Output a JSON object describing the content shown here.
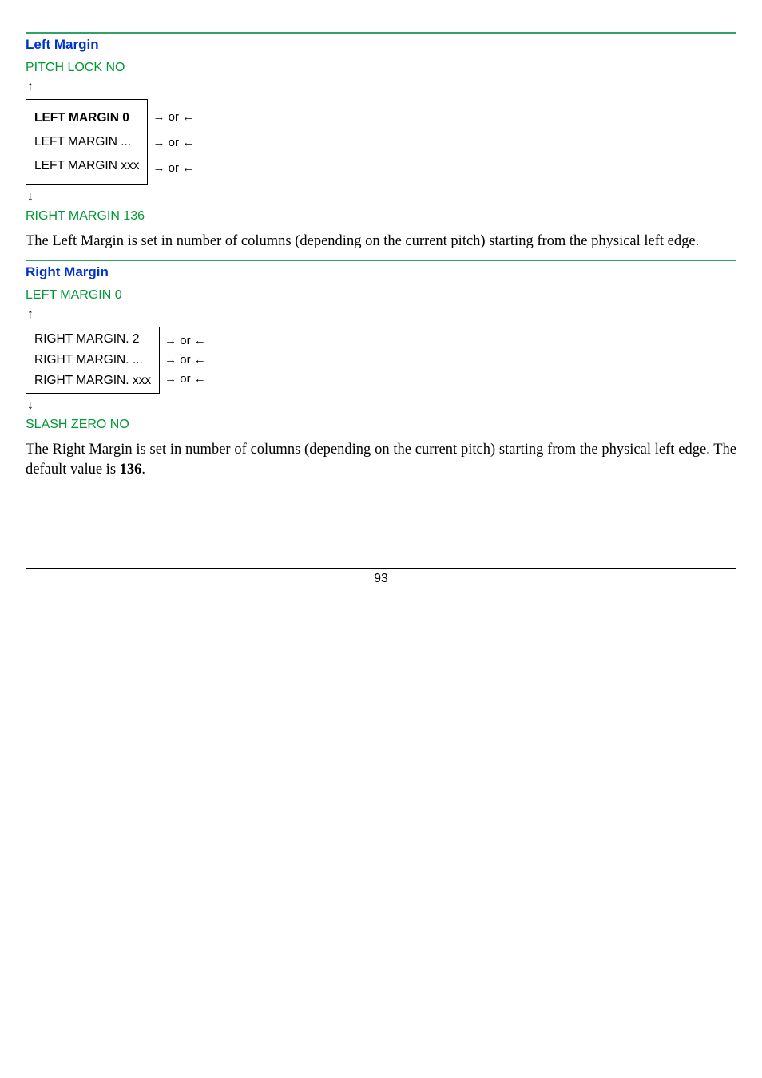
{
  "colors": {
    "hr_top": "#33a066",
    "section_title": "#0033cc",
    "green": "#009933",
    "text": "#000000"
  },
  "section1": {
    "title": "Left Margin",
    "prev": "PITCH LOCK NO",
    "up_arrow": "↑",
    "down_arrow": "↓",
    "items": [
      {
        "label": "LEFT MARGIN 0",
        "bold": true
      },
      {
        "label": "LEFT MARGIN ...",
        "bold": false
      },
      {
        "label": "LEFT MARGIN xxx",
        "bold": false
      }
    ],
    "side": "→ or ←",
    "next": "RIGHT MARGIN 136",
    "body": "The Left Margin is set in number of columns (depending on the current pitch) starting from the physical left edge."
  },
  "section2": {
    "title": "Right Margin",
    "prev": "LEFT MARGIN 0",
    "up_arrow": "↑",
    "down_arrow": "↓",
    "items": [
      {
        "label": "RIGHT MARGIN. 2",
        "bold": false
      },
      {
        "label": "RIGHT MARGIN. ...",
        "bold": false
      },
      {
        "label": "RIGHT MARGIN. xxx",
        "bold": false
      }
    ],
    "side": "→ or ←",
    "next": "SLASH ZERO NO",
    "body_pre": "The Right Margin is set in number of columns (depending on the current pitch) starting from the physical left edge. The default value is ",
    "body_bold": "136",
    "body_post": "."
  },
  "page_number": "93"
}
